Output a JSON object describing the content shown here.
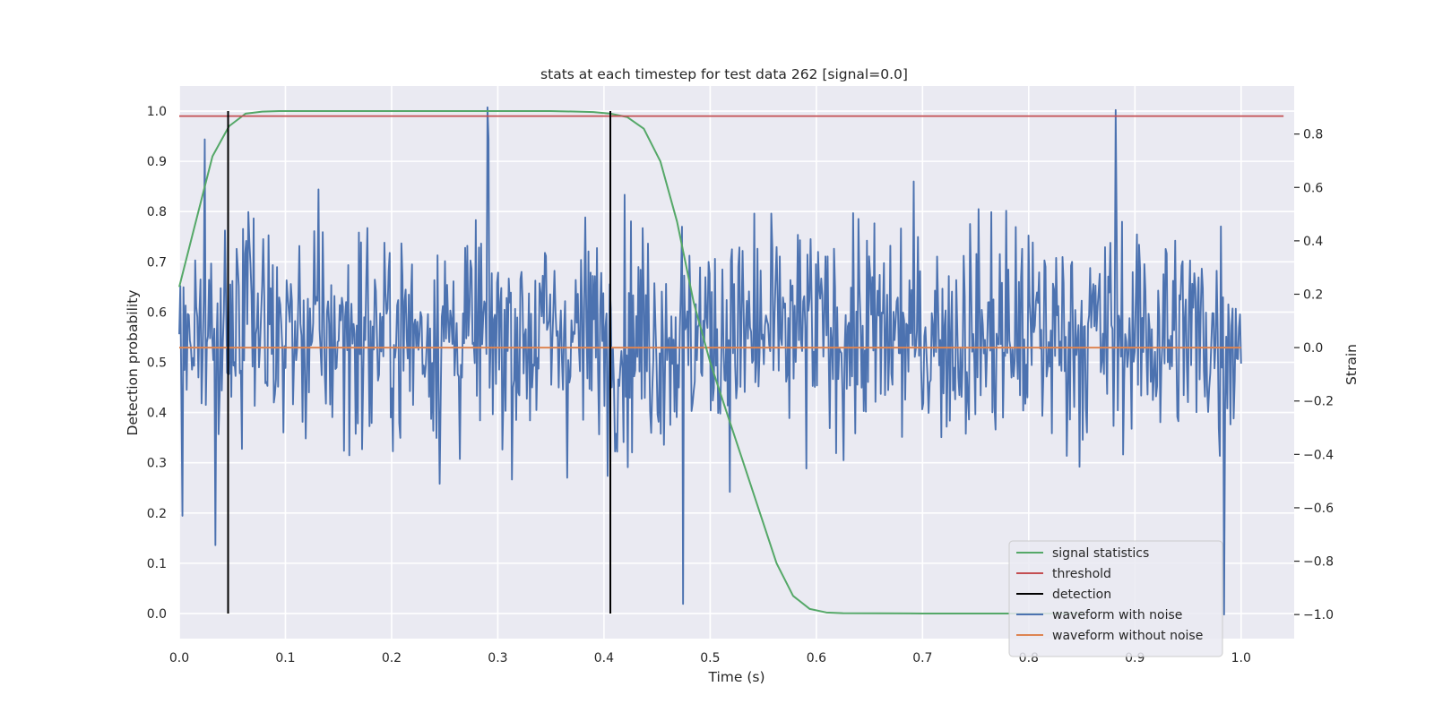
{
  "chart_data": {
    "type": "line",
    "title": "stats at each timestep for test data 262 [signal=0.0]",
    "xlabel": "Time (s)",
    "ylabel_left": "Detection probability",
    "ylabel_right": "Strain",
    "xlim": [
      0.0,
      1.05
    ],
    "ylim_left": [
      -0.05,
      1.05
    ],
    "ylim_right": [
      -1.09,
      0.98
    ],
    "x_ticks": [
      "0.0",
      "0.1",
      "0.2",
      "0.3",
      "0.4",
      "0.5",
      "0.6",
      "0.7",
      "0.8",
      "0.9",
      "1.0"
    ],
    "y_ticks_left": [
      "0.0",
      "0.1",
      "0.2",
      "0.3",
      "0.4",
      "0.5",
      "0.6",
      "0.7",
      "0.8",
      "0.9",
      "1.0"
    ],
    "y_ticks_right": [
      "−1.0",
      "−0.8",
      "−0.6",
      "−0.4",
      "−0.2",
      "0.0",
      "0.2",
      "0.4",
      "0.6",
      "0.8"
    ],
    "grid": true,
    "legend_position": "lower right",
    "colors": {
      "signal_statistics": "#55a868",
      "threshold": "#c44e52",
      "detection": "#000000",
      "waveform_with_noise": "#4c72b0",
      "waveform_without_noise": "#dd8452",
      "plot_background": "#eaeaf2",
      "grid": "#ffffff"
    },
    "series": [
      {
        "name": "signal statistics",
        "axis": "left",
        "x": [
          0.0,
          0.0156,
          0.0313,
          0.0469,
          0.0625,
          0.0781,
          0.0938,
          0.1094,
          0.125,
          0.2,
          0.3,
          0.35,
          0.375,
          0.39,
          0.406,
          0.422,
          0.4375,
          0.4531,
          0.4688,
          0.4844,
          0.5,
          0.5156,
          0.5313,
          0.5469,
          0.5625,
          0.5781,
          0.5938,
          0.6094,
          0.625,
          0.7,
          0.8,
          0.85
        ],
        "y": [
          0.65,
          0.78,
          0.91,
          0.97,
          0.995,
          0.999,
          1.0,
          1.0,
          1.0,
          1.0,
          1.0,
          1.0,
          0.999,
          0.998,
          0.995,
          0.988,
          0.965,
          0.9,
          0.78,
          0.62,
          0.5,
          0.4,
          0.3,
          0.2,
          0.1,
          0.035,
          0.009,
          0.002,
          0.0005,
          0.0,
          0.0,
          0.0
        ]
      },
      {
        "name": "threshold",
        "axis": "left",
        "x": [
          0.0,
          1.04
        ],
        "y": [
          0.99,
          0.99
        ]
      },
      {
        "name": "detection",
        "axis": "left",
        "segments": [
          {
            "x": 0.046,
            "y": [
              0.0,
              1.0
            ]
          },
          {
            "x": 0.406,
            "y": [
              0.0,
              1.0
            ]
          }
        ]
      },
      {
        "name": "waveform with noise",
        "axis": "right",
        "x_range": [
          0.0,
          1.0
        ],
        "n_points": 1000,
        "y_range": [
          -1.0,
          0.9
        ],
        "highlighted_points": [
          {
            "x": 0.0,
            "y": 0.05
          },
          {
            "x": 0.003,
            "y": -0.63
          },
          {
            "x": 0.024,
            "y": 0.78
          },
          {
            "x": 0.034,
            "y": -0.74
          },
          {
            "x": 0.29,
            "y": 0.9
          },
          {
            "x": 0.474,
            "y": -0.96
          },
          {
            "x": 0.882,
            "y": 0.89
          },
          {
            "x": 0.984,
            "y": -1.0
          },
          {
            "x": 1.0,
            "y": -0.06
          }
        ]
      },
      {
        "name": "waveform without noise",
        "axis": "right",
        "x": [
          0.0,
          1.0
        ],
        "y": [
          0.0,
          0.0
        ]
      }
    ]
  }
}
